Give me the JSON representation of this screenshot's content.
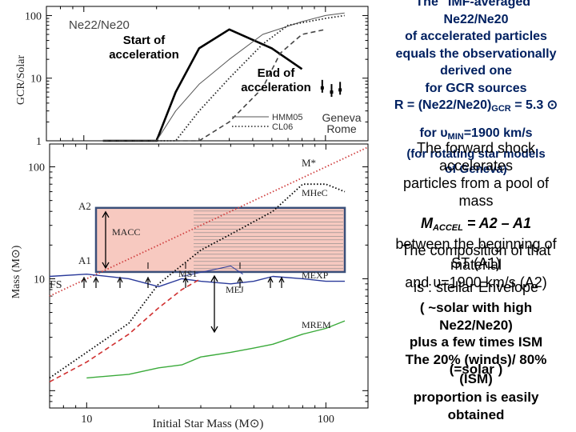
{
  "chart_data": [
    {
      "type": "line",
      "title": "Ne22/Ne20",
      "ylabel": "GCR/Solar",
      "yscale": "log",
      "xscale": "log",
      "xlim": [
        7,
        150
      ],
      "ylim": [
        1,
        140
      ],
      "ytick_labels": [
        "1",
        "10",
        "100"
      ],
      "series": [
        {
          "name": "",
          "style": "solid-thick",
          "color": "#000000",
          "x": [
            12,
            20,
            24,
            30,
            40,
            60,
            80
          ],
          "y": [
            1,
            1,
            6,
            30,
            60,
            30,
            14
          ]
        },
        {
          "name": "HMM05",
          "style": "solid-thin",
          "color": "#555555",
          "x": [
            12,
            20,
            24,
            30,
            40,
            55,
            80,
            100,
            120
          ],
          "y": [
            1,
            1,
            3,
            8,
            20,
            50,
            80,
            100,
            110
          ]
        },
        {
          "name": "CL06",
          "style": "dotted",
          "color": "#222222",
          "x": [
            12,
            24,
            30,
            40,
            55,
            70,
            100,
            120
          ],
          "y": [
            1,
            1,
            3,
            10,
            35,
            70,
            90,
            100
          ]
        },
        {
          "name": "",
          "style": "dashed",
          "color": "#444444",
          "x": [
            12,
            30,
            40,
            55,
            65,
            80,
            100
          ],
          "y": [
            1,
            1,
            2,
            7,
            25,
            50,
            60
          ]
        }
      ],
      "markers": [
        {
          "x": 97,
          "y": 7
        },
        {
          "x": 106,
          "y": 6
        },
        {
          "x": 115,
          "y": 6.5
        }
      ]
    },
    {
      "type": "line",
      "xlabel": "Initial Star Mass (M⊙)",
      "ylabel": "Mass (M⊙)",
      "xscale": "log",
      "yscale": "log",
      "xlim": [
        7,
        150
      ],
      "ylim": [
        0.7,
        160
      ],
      "xtick_labels": [
        "10",
        "100"
      ],
      "ytick_labels": [
        "10",
        "100"
      ],
      "series": [
        {
          "name": "M*",
          "color": "#d04040",
          "style": "dotted",
          "x": [
            7,
            150
          ],
          "y": [
            7,
            150
          ]
        },
        {
          "name": "MHeC",
          "color": "#000000",
          "style": "dotted",
          "x": [
            7,
            15,
            20,
            30,
            40,
            60,
            80,
            100,
            120
          ],
          "y": [
            1.3,
            4,
            9,
            18,
            25,
            40,
            70,
            70,
            60
          ]
        },
        {
          "name": "MEXP",
          "color": "#2a3a9a",
          "style": "solid",
          "x": [
            7,
            10,
            15,
            20,
            25,
            30,
            40,
            50,
            60,
            80,
            100,
            120
          ],
          "y": [
            10.5,
            11,
            10,
            8.5,
            10,
            9.5,
            9,
            9.5,
            10.5,
            10,
            9.5,
            9.5
          ]
        },
        {
          "name": "MS1",
          "color": "#2a3a9a",
          "style": "solid-thin",
          "x": [
            25,
            40,
            45
          ],
          "y": [
            10.5,
            13,
            11
          ]
        },
        {
          "name": "MREM",
          "color": "#3aaa3a",
          "style": "solid",
          "x": [
            10,
            15,
            20,
            25,
            30,
            40,
            50,
            60,
            80,
            100,
            120
          ],
          "y": [
            1.3,
            1.4,
            1.6,
            1.7,
            2.0,
            2.2,
            2.4,
            2.6,
            3.2,
            3.6,
            4.2
          ]
        },
        {
          "name": "",
          "color": "#d03030",
          "style": "dashed",
          "x": [
            7,
            10,
            15,
            20,
            25,
            30
          ],
          "y": [
            1.2,
            1.8,
            3.2,
            5.5,
            8,
            10
          ]
        }
      ],
      "region": {
        "label": "MACC",
        "y_low": 11.5,
        "y_high": 43,
        "x_from": 7,
        "x_to": 120
      },
      "annotations": [
        "M*",
        "MHeC",
        "MEXP",
        "MS1",
        "MEJ",
        "MREM",
        "FS",
        "A2",
        "A1",
        "MACC"
      ]
    }
  ],
  "overlays": {
    "start": [
      "Start of",
      "acceleration"
    ],
    "end": [
      "End of",
      "acceleration"
    ],
    "geneva": "Geneva",
    "rome": "Rome"
  },
  "right": {
    "p1": [
      "The \"IMF-averaged\"",
      "Ne22/Ne20",
      "of accelerated particles",
      "equals the observationally",
      "derived  one",
      "for GCR sources"
    ],
    "p1_formula": "R = (Ne22/Ne20)",
    "p1_formula_sub": "GCR",
    "p1_formula_val": " = 5.3 ⊙",
    "p2_for": "for υ",
    "p2_sub": "MIN",
    "p2_val": "=1900 km/s",
    "p2_models": "(for rotating star models",
    "p2_geneva": "of Geneva)",
    "shock": [
      "The forward shock",
      "accelerates",
      "particles from a pool of",
      "mass"
    ],
    "macel": "M",
    "macel_sub": "ACCEL",
    "macel_eq": " = A2 – A1",
    "between": "between the beginning of",
    "st": "ST (A1)",
    "and": "and υ=1900 km/s  (A2)",
    "composition": [
      "The composition of that",
      "material"
    ],
    "envelope": "is : stellar Envelope",
    "solar": [
      "( ~solar with high",
      "Ne22/Ne20)",
      "plus a few times ISM"
    ],
    "twenty": "The 20% (winds)/ 80%",
    "solar2": "(=solar )",
    "ism": "(ISM)",
    "tail": [
      "proportion is easily",
      "obtained"
    ]
  }
}
